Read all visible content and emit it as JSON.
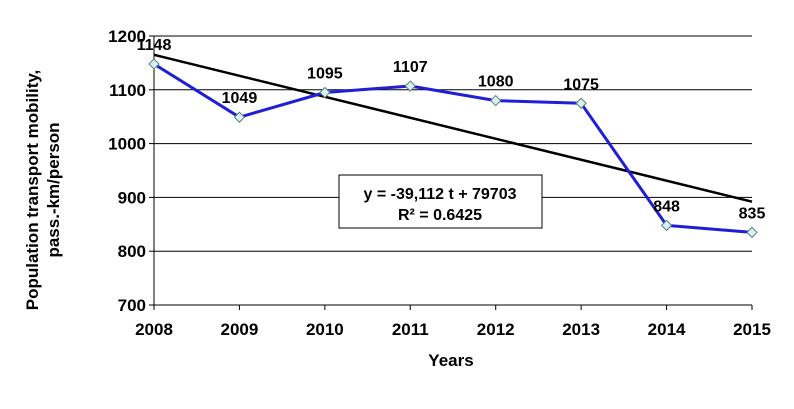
{
  "chart_data": {
    "type": "line",
    "x": [
      "2008",
      "2009",
      "2010",
      "2011",
      "2012",
      "2013",
      "2014",
      "2015"
    ],
    "series": [
      {
        "values": [
          1148,
          1049,
          1095,
          1107,
          1080,
          1075,
          848,
          835
        ],
        "labels": [
          "1148",
          "1049",
          "1095",
          "1107",
          "1080",
          "1075",
          "848",
          "835"
        ],
        "color": "#1f1fd6",
        "marker_fill": "#d9f2ee",
        "marker_shape": "diamond"
      }
    ],
    "trendline": {
      "type": "linear",
      "start": {
        "x": "2008",
        "y": 1165
      },
      "end": {
        "x": "2015",
        "y": 892
      },
      "color": "#000000",
      "equation": "y = -39,112 t + 79703",
      "r_squared": "R² = 0.6425"
    },
    "xlabel": "Years",
    "ylabel": [
      "Population transport mobility,",
      "pass.-km/person"
    ],
    "ylim": [
      700,
      1200
    ],
    "yticks": [
      "700",
      "800",
      "900",
      "1000",
      "1100",
      "1200"
    ],
    "grid": "horizontal",
    "grid_color": "#000000"
  }
}
